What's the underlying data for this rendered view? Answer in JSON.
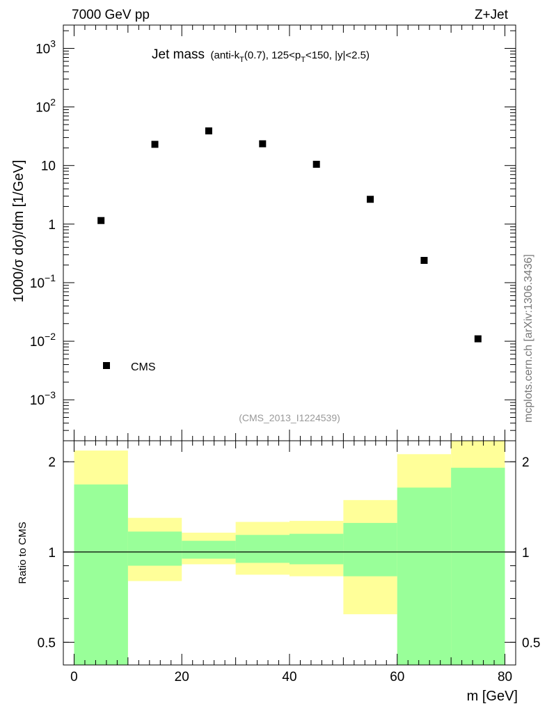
{
  "header": {
    "energy_label": "7000 GeV pp",
    "process_label": "Z+Jet"
  },
  "chart_data": [
    {
      "type": "scatter",
      "panel": "main",
      "title": "Jet mass",
      "subtitle": "(anti-kT(0.7), 125<pT<150, |y|<2.5)",
      "subtitle_parts": {
        "pre": "(anti-k",
        "sub1": "T",
        "mid": "(0.7), 125<p",
        "sub2": "T",
        "post": "<150, |y|<2.5)"
      },
      "ylabel": "1000/σ dσ)/dm [1/GeV]",
      "xlabel": "m [GeV]",
      "yscale": "log",
      "ylim": [
        0.0002,
        2500
      ],
      "xlim": [
        -2,
        82
      ],
      "x": [
        5,
        15,
        25,
        35,
        45,
        55,
        65,
        75
      ],
      "values": [
        1.15,
        23,
        39,
        23.5,
        10.5,
        2.65,
        0.24,
        0.011
      ],
      "series_name": "CMS",
      "legend": {
        "label": "CMS",
        "position": "bottom-left"
      },
      "y_ticks": [
        {
          "value": 1000,
          "label": "10^3",
          "base": "10",
          "exp": "3"
        },
        {
          "value": 100,
          "label": "10^2",
          "base": "10",
          "exp": "2"
        },
        {
          "value": 10,
          "label": "10"
        },
        {
          "value": 1,
          "label": "1"
        },
        {
          "value": 0.1,
          "label": "10^-1",
          "base": "10",
          "exp": "−1"
        },
        {
          "value": 0.01,
          "label": "10^-2",
          "base": "10",
          "exp": "−2"
        },
        {
          "value": 0.001,
          "label": "10^-3",
          "base": "10",
          "exp": "−3"
        }
      ],
      "analysis_id": "(CMS_2013_I1224539)",
      "side_label": "mcplots.cern.ch [arXiv:1306.3436]"
    },
    {
      "type": "area",
      "panel": "ratio",
      "ylabel": "Ratio to CMS",
      "yscale": "log",
      "ylim": [
        0.42,
        2.35
      ],
      "xlim": [
        -2,
        82
      ],
      "x_ticks": [
        0,
        20,
        40,
        60,
        80
      ],
      "y_ticks": [
        0.5,
        1,
        2
      ],
      "reference_line": 1,
      "bins": [
        [
          0,
          10
        ],
        [
          10,
          20
        ],
        [
          20,
          30
        ],
        [
          30,
          40
        ],
        [
          40,
          50
        ],
        [
          50,
          60
        ],
        [
          60,
          70
        ],
        [
          70,
          80
        ]
      ],
      "bands": [
        {
          "name": "total uncertainty",
          "color": "#ffff99",
          "low": [
            0.42,
            0.8,
            0.91,
            0.84,
            0.83,
            0.62,
            0.38,
            0.42
          ],
          "high": [
            2.18,
            1.3,
            1.16,
            1.26,
            1.27,
            1.49,
            2.12,
            2.35
          ]
        },
        {
          "name": "stat uncertainty",
          "color": "#99ff99",
          "low": [
            0.42,
            0.9,
            0.95,
            0.92,
            0.91,
            0.83,
            0.42,
            0.42
          ],
          "high": [
            1.68,
            1.17,
            1.09,
            1.14,
            1.15,
            1.25,
            1.64,
            1.91
          ]
        }
      ]
    }
  ]
}
